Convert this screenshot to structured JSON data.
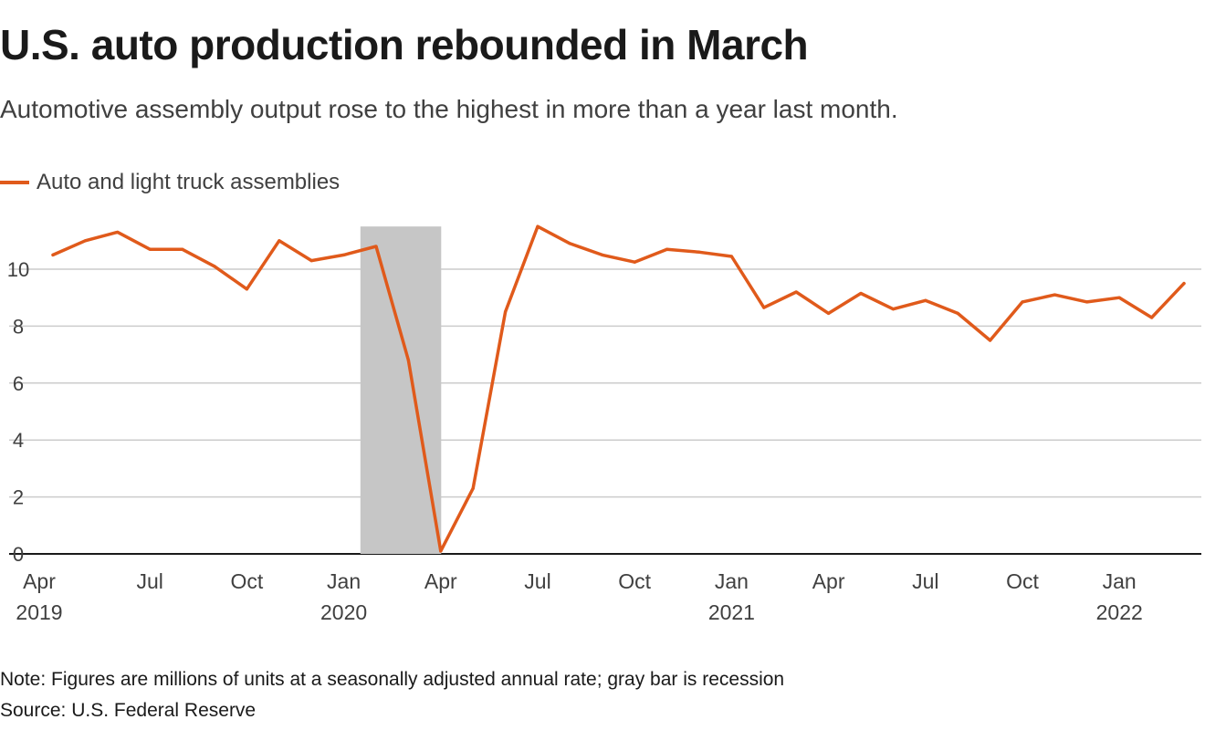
{
  "chart_data": {
    "type": "line",
    "title": "U.S. auto production rebounded in March",
    "subtitle": "Automotive assembly output rose to the highest in more than a year last month.",
    "xlabel": "",
    "ylabel": "",
    "ylim": [
      0,
      11.5
    ],
    "yticks": [
      0,
      2,
      4,
      6,
      8,
      10
    ],
    "grid": true,
    "legend_position": "top-left",
    "x": [
      "2019-04",
      "2019-05",
      "2019-06",
      "2019-07",
      "2019-08",
      "2019-09",
      "2019-10",
      "2019-11",
      "2019-12",
      "2020-01",
      "2020-02",
      "2020-03",
      "2020-04",
      "2020-05",
      "2020-06",
      "2020-07",
      "2020-08",
      "2020-09",
      "2020-10",
      "2020-11",
      "2020-12",
      "2021-01",
      "2021-02",
      "2021-03",
      "2021-04",
      "2021-05",
      "2021-06",
      "2021-07",
      "2021-08",
      "2021-09",
      "2021-10",
      "2021-11",
      "2021-12",
      "2022-01",
      "2022-02",
      "2022-03"
    ],
    "x_ticks": [
      {
        "index": 0,
        "month": "Apr",
        "year": "2019"
      },
      {
        "index": 3,
        "month": "Jul",
        "year": ""
      },
      {
        "index": 6,
        "month": "Oct",
        "year": ""
      },
      {
        "index": 9,
        "month": "Jan",
        "year": "2020"
      },
      {
        "index": 12,
        "month": "Apr",
        "year": ""
      },
      {
        "index": 15,
        "month": "Jul",
        "year": ""
      },
      {
        "index": 18,
        "month": "Oct",
        "year": ""
      },
      {
        "index": 21,
        "month": "Jan",
        "year": "2021"
      },
      {
        "index": 24,
        "month": "Apr",
        "year": ""
      },
      {
        "index": 27,
        "month": "Jul",
        "year": ""
      },
      {
        "index": 30,
        "month": "Oct",
        "year": ""
      },
      {
        "index": 33,
        "month": "Jan",
        "year": "2022"
      }
    ],
    "series": [
      {
        "name": "Auto and light truck assemblies",
        "color": "#e05a1b",
        "values": [
          10.5,
          11.0,
          11.3,
          10.7,
          10.7,
          10.1,
          9.3,
          11.0,
          10.3,
          10.5,
          10.8,
          6.8,
          0.1,
          2.3,
          8.5,
          11.5,
          10.9,
          10.5,
          10.25,
          10.7,
          10.6,
          10.45,
          8.65,
          9.2,
          8.45,
          9.15,
          8.6,
          8.9,
          8.45,
          7.5,
          8.85,
          9.1,
          8.85,
          9.0,
          8.3,
          9.5
        ]
      }
    ],
    "recession": {
      "start": "2020-02",
      "end": "2020-04",
      "color": "#c6c6c6"
    },
    "note": "Note: Figures are millions of units at a seasonally adjusted annual rate; gray bar is recession",
    "source": "Source: U.S. Federal Reserve"
  }
}
